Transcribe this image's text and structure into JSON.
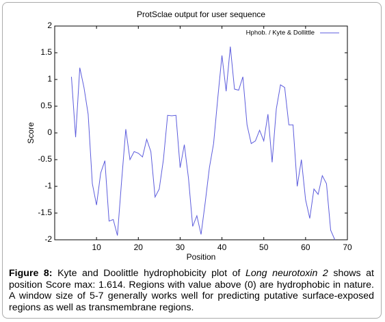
{
  "chart_data": {
    "type": "line",
    "title": "ProtSclae output for user sequence",
    "xlabel": "Position",
    "ylabel": "Score",
    "xlim": [
      0,
      70
    ],
    "xticks": [
      10,
      20,
      30,
      40,
      50,
      60,
      70
    ],
    "ylim": [
      -2,
      2
    ],
    "yticks": [
      -2,
      -1.5,
      -1,
      -0.5,
      0,
      0.5,
      1,
      1.5,
      2
    ],
    "legend": "top-right",
    "grid": false,
    "x": [
      4,
      5,
      6,
      7,
      8,
      9,
      10,
      11,
      12,
      13,
      14,
      15,
      16,
      17,
      18,
      19,
      20,
      21,
      22,
      23,
      24,
      25,
      26,
      27,
      28,
      29,
      30,
      31,
      32,
      33,
      34,
      35,
      36,
      37,
      38,
      39,
      40,
      41,
      42,
      43,
      44,
      45,
      46,
      47,
      48,
      49,
      50,
      51,
      52,
      53,
      54,
      55,
      56,
      57,
      58,
      59,
      60,
      61,
      62,
      63,
      64,
      65,
      66,
      67
    ],
    "series": [
      {
        "name": "Hphob. /  Kyte & Dollittle",
        "color": "#5b5bdc",
        "values": [
          1.05,
          -0.08,
          1.22,
          0.85,
          0.35,
          -0.95,
          -1.35,
          -0.75,
          -0.52,
          -1.65,
          -1.62,
          -1.92,
          -0.9,
          0.07,
          -0.5,
          -0.35,
          -0.38,
          -0.45,
          -0.12,
          -0.35,
          -1.2,
          -1.05,
          -0.5,
          0.33,
          0.32,
          0.33,
          -0.65,
          -0.22,
          -0.85,
          -1.75,
          -1.55,
          -1.9,
          -1.3,
          -0.65,
          -0.2,
          0.65,
          1.45,
          0.78,
          1.614,
          0.82,
          0.8,
          1.05,
          0.15,
          -0.2,
          -0.15,
          0.05,
          -0.15,
          0.35,
          -0.55,
          0.45,
          0.9,
          0.85,
          0.15,
          0.15,
          -1.0,
          -0.5,
          -1.25,
          -1.6,
          -1.05,
          -1.15,
          -0.8,
          -0.95,
          -1.82,
          -2.0
        ]
      }
    ]
  },
  "caption": {
    "label": "Figure 8:",
    "text_before": "Kyte and Doolittle hydrophobicity plot of",
    "italic": "Long neurotoxin 2",
    "text_after": "shows at position Score max: 1.614. Regions with value above (0) are hydrophobic in nature. A window size of 5-7 generally works well for predicting putative surface-exposed regions as well as transmembrane regions."
  }
}
